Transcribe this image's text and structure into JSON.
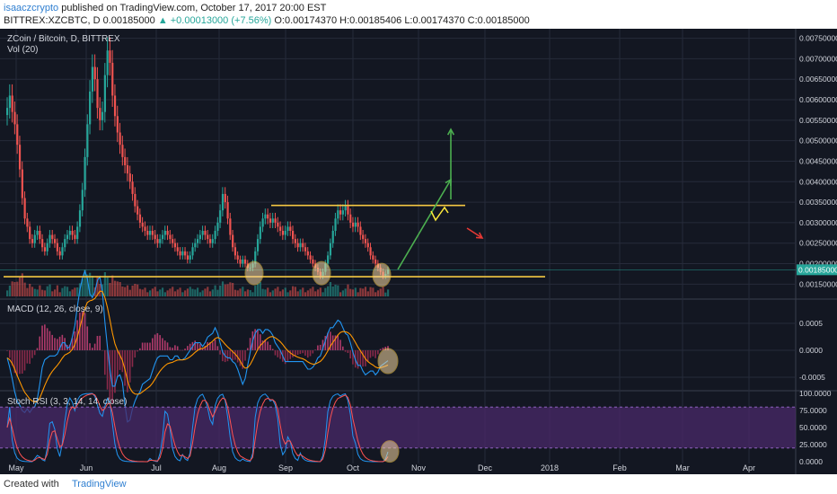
{
  "header": {
    "author": "isaaczcrypto",
    "published": "published on TradingView.com, October 17, 2017 20:00 EST",
    "symbol": "BITTREX:XZCBTC, D",
    "price": "0.00185000",
    "change": "▲ +0.00013000 (+7.56%)",
    "ohlc": "O:0.00174370 H:0.00185406 L:0.00174370 C:0.00185000"
  },
  "footer": {
    "created_with": "Created with",
    "brand": "TradingView"
  },
  "colors": {
    "bg": "#131722",
    "bull": "#26a69a",
    "bear": "#ef5350",
    "grid": "#262b3a",
    "yellow": "#f5c842",
    "green_arrow": "#4caf50",
    "red_arrow": "#e53935",
    "macd": "#2196f3",
    "signal": "#ff9800",
    "stoch_k": "#2196f3",
    "stoch_d": "#ff5252",
    "band": "#4a2a6a"
  },
  "chart_data": [
    {
      "type": "candlestick",
      "title": "ZCoin / Bitcoin, D, BITTREX",
      "legend": "Vol (20)",
      "x_ticks": [
        "May",
        "Jun",
        "Jul",
        "Aug",
        "Sep",
        "Oct",
        "Nov",
        "Dec",
        "2018",
        "Feb",
        "Mar",
        "Apr"
      ],
      "y_ticks": [
        "0.00750000",
        "0.00700000",
        "0.00650000",
        "0.00600000",
        "0.00550000",
        "0.00500000",
        "0.00450000",
        "0.00400000",
        "0.00350000",
        "0.00300000",
        "0.00250000",
        "0.00200000",
        "0.00150000"
      ],
      "ylim": [
        0.0012,
        0.0076
      ],
      "last_price": "0.00185000",
      "close_series": [
        0.0058,
        0.0061,
        0.0057,
        0.0054,
        0.0049,
        0.0043,
        0.0036,
        0.0031,
        0.0029,
        0.0026,
        0.0025,
        0.0027,
        0.0028,
        0.0026,
        0.0024,
        0.0023,
        0.0025,
        0.0027,
        0.0026,
        0.0025,
        0.0023,
        0.0022,
        0.0024,
        0.0026,
        0.0027,
        0.0028,
        0.0027,
        0.0026,
        0.0029,
        0.0033,
        0.0038,
        0.0046,
        0.0054,
        0.0062,
        0.0068,
        0.0065,
        0.0058,
        0.0055,
        0.0057,
        0.0066,
        0.0072,
        0.0069,
        0.0061,
        0.0056,
        0.0052,
        0.0049,
        0.0046,
        0.0044,
        0.0042,
        0.004,
        0.0037,
        0.0034,
        0.0032,
        0.003,
        0.0029,
        0.0028,
        0.0027,
        0.0028,
        0.0027,
        0.0026,
        0.0025,
        0.0026,
        0.0027,
        0.0028,
        0.0027,
        0.0026,
        0.0025,
        0.0024,
        0.0023,
        0.0022,
        0.0023,
        0.0022,
        0.0021,
        0.0022,
        0.0024,
        0.0025,
        0.0026,
        0.0027,
        0.0028,
        0.0027,
        0.0026,
        0.0025,
        0.0026,
        0.0028,
        0.003,
        0.0033,
        0.0037,
        0.0035,
        0.0031,
        0.0027,
        0.0024,
        0.0022,
        0.0021,
        0.002,
        0.0021,
        0.002,
        0.0019,
        0.0019,
        0.002,
        0.0023,
        0.0026,
        0.0029,
        0.0031,
        0.0032,
        0.0031,
        0.003,
        0.0031,
        0.003,
        0.0029,
        0.0028,
        0.0027,
        0.0028,
        0.0029,
        0.0028,
        0.0026,
        0.0025,
        0.0024,
        0.0025,
        0.0024,
        0.0023,
        0.0022,
        0.0021,
        0.002,
        0.0019,
        0.0018,
        0.0017,
        0.0018,
        0.002,
        0.0022,
        0.0025,
        0.0028,
        0.0031,
        0.0033,
        0.0032,
        0.0033,
        0.0034,
        0.0032,
        0.003,
        0.0029,
        0.003,
        0.0029,
        0.0027,
        0.0026,
        0.0025,
        0.0024,
        0.0022,
        0.0021,
        0.002,
        0.0019,
        0.0018,
        0.0017,
        0.00175,
        0.00185
      ],
      "annotations": {
        "resistance": 0.00342,
        "support": 0.00168
      }
    },
    {
      "type": "line",
      "title": "MACD (12, 26, close, 9)",
      "y_ticks": [
        "0.0005",
        "0.0000",
        "-0.0005"
      ],
      "ylim": [
        -0.0007,
        0.0009
      ]
    },
    {
      "type": "line",
      "title": "Stoch RSI (3, 3, 14, 14, close)",
      "y_ticks": [
        "100.0000",
        "75.0000",
        "50.0000",
        "25.0000",
        "0.0000"
      ],
      "ylim": [
        0,
        100
      ],
      "band": [
        20,
        80
      ]
    }
  ]
}
